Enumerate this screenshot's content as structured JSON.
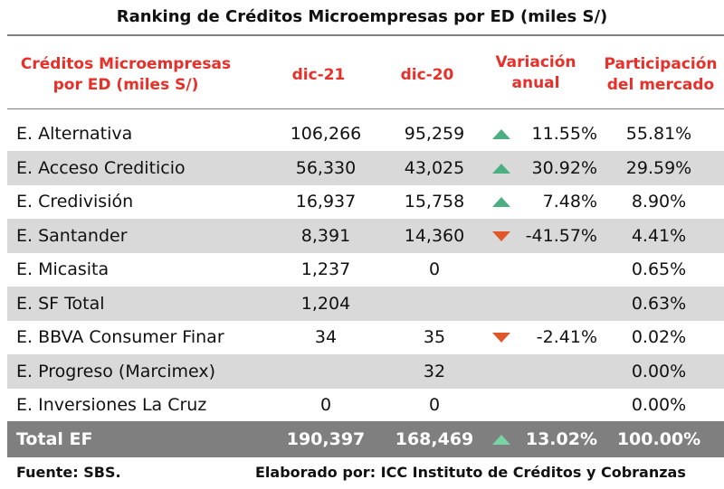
{
  "title": "Ranking de Créditos Microempresas por ED (miles S/)",
  "header": {
    "col_entity_line1": "Créditos Microempresas",
    "col_entity_line2": "por ED (miles S/)",
    "col_dic21": "dic-21",
    "col_dic20": "dic-20",
    "col_var_line1": "Variación",
    "col_var_line2": "anual",
    "col_part_line1": "Participación",
    "col_part_line2": "del mercado"
  },
  "colors": {
    "header_text": "#e8302a",
    "shade": "#d9d9d9",
    "total_bg": "#7f7f7f",
    "arrow_up": "#4caf82",
    "arrow_down": "#e0582a"
  },
  "rows": [
    {
      "name": "E. Alternativa",
      "dic21": "106,266",
      "dic20": "95,259",
      "trend": "up",
      "var": "11.55%",
      "part": "55.81%"
    },
    {
      "name": "E. Acceso Crediticio",
      "dic21": "56,330",
      "dic20": "43,025",
      "trend": "up",
      "var": "30.92%",
      "part": "29.59%"
    },
    {
      "name": "E. Credivisión",
      "dic21": "16,937",
      "dic20": "15,758",
      "trend": "up",
      "var": "7.48%",
      "part": "8.90%"
    },
    {
      "name": "E. Santander",
      "dic21": "8,391",
      "dic20": "14,360",
      "trend": "down",
      "var": "-41.57%",
      "part": "4.41%"
    },
    {
      "name": "E. Micasita",
      "dic21": "1,237",
      "dic20": "0",
      "trend": "",
      "var": "",
      "part": "0.65%"
    },
    {
      "name": "E. SF Total",
      "dic21": "1,204",
      "dic20": "",
      "trend": "",
      "var": "",
      "part": "0.63%"
    },
    {
      "name": "E. BBVA Consumer Finar",
      "dic21": "34",
      "dic20": "35",
      "trend": "down",
      "var": "-2.41%",
      "part": "0.02%"
    },
    {
      "name": "E. Progreso (Marcimex)",
      "dic21": "",
      "dic20": "32",
      "trend": "",
      "var": "",
      "part": "0.00%"
    },
    {
      "name": "E. Inversiones La Cruz",
      "dic21": "0",
      "dic20": "0",
      "trend": "",
      "var": "",
      "part": "0.00%"
    }
  ],
  "total": {
    "name": "Total EF",
    "dic21": "190,397",
    "dic20": "168,469",
    "trend": "up",
    "var": "13.02%",
    "part": "100.00%"
  },
  "footer": {
    "source": "Fuente: SBS.",
    "credit": "Elaborado por: ICC Instituto de Créditos y Cobranzas"
  }
}
